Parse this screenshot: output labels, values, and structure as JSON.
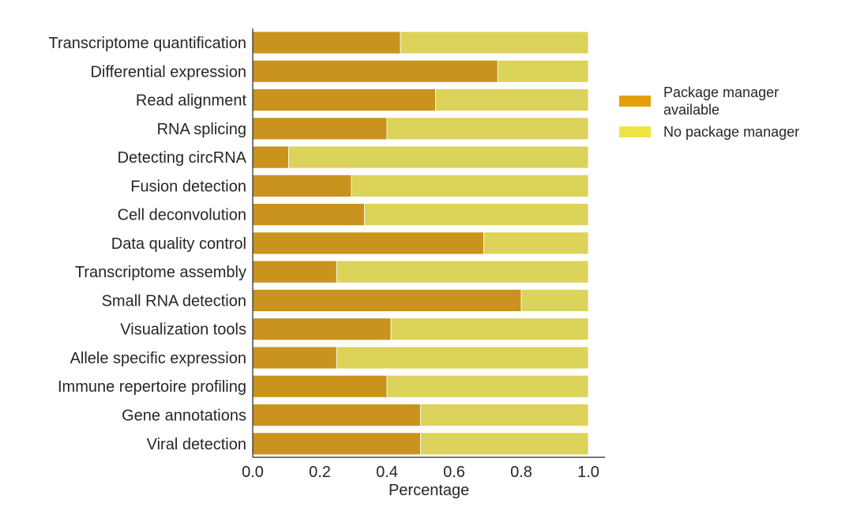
{
  "chart_data": {
    "type": "bar",
    "orientation": "horizontal",
    "stacked": true,
    "categories": [
      "Transcriptome quantification",
      "Differential expression",
      "Read alignment",
      "RNA splicing",
      "Detecting circRNA",
      "Fusion detection",
      "Cell deconvolution",
      "Data quality control",
      "Transcriptome assembly",
      "Small RNA detection",
      "Visualization tools",
      "Allele specific expression",
      "Immune repertoire profiling",
      "Gene annotations",
      "Viral detection"
    ],
    "series": [
      {
        "name": "Package manager available",
        "color": "#C9931E",
        "values": [
          0.44,
          0.73,
          0.545,
          0.4,
          0.107,
          0.294,
          0.333,
          0.688,
          0.25,
          0.8,
          0.412,
          0.25,
          0.4,
          0.5,
          0.5
        ]
      },
      {
        "name": "No package manager",
        "color": "#DCD35A",
        "values": [
          0.56,
          0.27,
          0.455,
          0.6,
          0.893,
          0.706,
          0.667,
          0.312,
          0.75,
          0.2,
          0.588,
          0.75,
          0.6,
          0.5,
          0.5
        ]
      }
    ],
    "legend_labels": [
      [
        "Package manager",
        "available"
      ],
      [
        "No package manager"
      ]
    ],
    "legend_colors": [
      "#E5A00D",
      "#F0E442"
    ],
    "xlabel": "Percentage",
    "ylabel": "",
    "xlim": [
      0,
      1.05
    ],
    "xticks": [
      "0.0",
      "0.2",
      "0.4",
      "0.6",
      "0.8",
      "1.0"
    ],
    "grid": false,
    "legend_position": "right"
  }
}
